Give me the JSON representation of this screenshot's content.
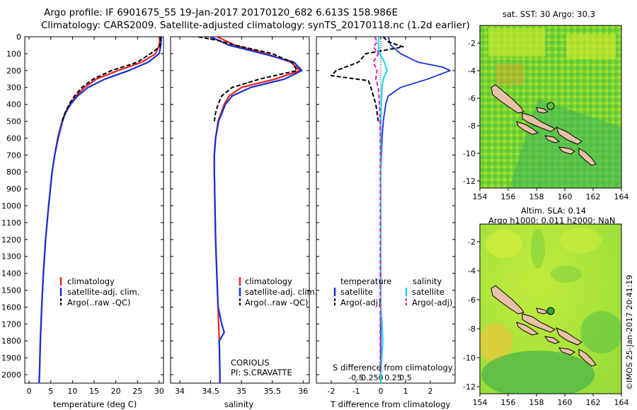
{
  "header": {
    "line1": "Argo profile: IF 6901675_55 19-Jan-2017 20170120_682 6.613S 158.986E",
    "line2": "Climatology: CARS2009. Satellite-adjusted climatology: synTS_20170118.nc (1.2d earlier)"
  },
  "sst_map": {
    "title": "sat. SST: 30 Argo: 30.3",
    "xticks": [
      "154",
      "156",
      "158",
      "160",
      "162",
      "164"
    ],
    "yticks": [
      "-2",
      "-4",
      "-6",
      "-8",
      "-10",
      "-12"
    ]
  },
  "sla_map": {
    "title1": "Altim. SLA: 0.14",
    "title2": "Argo h1000: 0.011 h2000: NaN",
    "xticks": [
      "154",
      "156",
      "158",
      "160",
      "162",
      "164"
    ],
    "yticks": [
      "-2",
      "-4",
      "-6",
      "-8",
      "-10",
      "-12"
    ]
  },
  "credit": "©IMOS 25-Jan-2017 20:41:19",
  "colors": {
    "clim": "#e8231b",
    "sat": "#1730d4",
    "argo": "#000000",
    "sat_s": "#22d8e8",
    "argo_s": "#e020c8"
  },
  "chart_data": [
    {
      "type": "line",
      "id": "temperature",
      "xlabel": "temperature (deg C)",
      "ylabel": "",
      "xlim": [
        -1,
        31
      ],
      "ylim": [
        2050,
        0
      ],
      "xticks": [
        0,
        5,
        10,
        15,
        20,
        25,
        30
      ],
      "yticks": [
        0,
        100,
        200,
        300,
        400,
        500,
        600,
        700,
        800,
        900,
        1000,
        1100,
        1200,
        1300,
        1400,
        1500,
        1600,
        1700,
        1800,
        1900,
        2000
      ],
      "legend": [
        "climatology",
        "satellite-adj. clim.",
        "Argo(..raw -QC)"
      ],
      "series": [
        {
          "name": "climatology",
          "depth": [
            0,
            50,
            100,
            150,
            200,
            250,
            300,
            350,
            400,
            450,
            500,
            600,
            700,
            800,
            1000,
            1200,
            1400,
            1600,
            1800,
            2000,
            2050
          ],
          "values": [
            30.2,
            30.0,
            29.2,
            26.0,
            20.5,
            15.5,
            12.8,
            10.8,
            9.4,
            8.3,
            7.6,
            6.6,
            5.9,
            5.3,
            4.5,
            3.8,
            3.3,
            2.9,
            2.6,
            2.4,
            2.3
          ]
        },
        {
          "name": "satellite-adj. clim.",
          "depth": [
            0,
            50,
            100,
            150,
            200,
            250,
            300,
            350,
            400,
            450,
            500,
            600,
            700,
            800,
            1000,
            1200,
            1400,
            1600,
            1800,
            2000,
            2050
          ],
          "values": [
            30.5,
            30.4,
            30.0,
            27.5,
            23.0,
            17.5,
            13.6,
            11.2,
            9.6,
            8.4,
            7.7,
            6.7,
            5.9,
            5.3,
            4.5,
            3.8,
            3.3,
            2.9,
            2.6,
            2.4,
            2.3
          ]
        },
        {
          "name": "Argo(..raw -QC)",
          "depth": [
            0,
            30,
            60,
            100,
            150,
            200,
            250,
            300,
            350,
            400,
            450,
            500
          ],
          "values": [
            30.3,
            30.3,
            30.1,
            28.0,
            25.0,
            19.0,
            14.8,
            12.2,
            10.5,
            9.2,
            8.3,
            7.6
          ]
        }
      ]
    },
    {
      "type": "line",
      "id": "salinity",
      "xlabel": "salinity",
      "ylabel": "",
      "xlim": [
        33.85,
        36.1
      ],
      "ylim": [
        2050,
        0
      ],
      "xticks": [
        34,
        34.5,
        35,
        35.5,
        36
      ],
      "yticks": [
        0,
        100,
        200,
        300,
        400,
        500,
        600,
        700,
        800,
        900,
        1000,
        1100,
        1200,
        1300,
        1400,
        1500,
        1600,
        1700,
        1800,
        1900,
        2000
      ],
      "legend": [
        "climatology",
        "satellite-adj. clim.",
        "Argo(..raw -QC)"
      ],
      "annotations": [
        "CORIOLIS",
        "PI: S.CRAVATTE"
      ],
      "series": [
        {
          "name": "climatology",
          "depth": [
            0,
            50,
            100,
            150,
            200,
            250,
            300,
            350,
            400,
            500,
            600,
            700,
            800,
            1000,
            1200,
            1400,
            1600,
            1700,
            1800,
            2000,
            2050
          ],
          "values": [
            34.6,
            34.9,
            35.4,
            35.8,
            35.95,
            35.55,
            35.0,
            34.8,
            34.72,
            34.62,
            34.58,
            34.56,
            34.56,
            34.57,
            34.58,
            34.6,
            34.62,
            34.63,
            34.64,
            34.65,
            34.65
          ]
        },
        {
          "name": "satellite-adj. clim.",
          "depth": [
            0,
            50,
            100,
            150,
            200,
            250,
            300,
            350,
            400,
            500,
            600,
            700,
            800,
            1000,
            1200,
            1400,
            1600,
            1700,
            1750,
            1800,
            2000,
            2050
          ],
          "values": [
            34.5,
            34.8,
            35.35,
            35.85,
            35.98,
            35.7,
            35.15,
            34.85,
            34.74,
            34.63,
            34.58,
            34.56,
            34.56,
            34.57,
            34.58,
            34.6,
            34.62,
            34.68,
            34.72,
            34.64,
            34.65,
            34.65
          ]
        },
        {
          "name": "Argo(..raw -QC)",
          "depth": [
            0,
            20,
            50,
            100,
            150,
            200,
            250,
            300,
            350,
            400,
            450,
            500
          ],
          "values": [
            34.3,
            34.6,
            34.9,
            35.5,
            35.82,
            35.9,
            35.3,
            34.85,
            34.68,
            34.62,
            34.58,
            34.56
          ]
        }
      ]
    },
    {
      "type": "line",
      "id": "difference",
      "xlabel": "T difference from climatology",
      "xlabel_top": "S difference from climatology",
      "ylabel": "",
      "xlim": [
        -2.6,
        3.0
      ],
      "ylim": [
        2050,
        0
      ],
      "xticks": [
        -2,
        -1,
        0,
        1,
        2
      ],
      "xticks_s": [
        "-0.5",
        "-0.25",
        "0",
        "0.25",
        "0.5"
      ],
      "yticks": [
        0,
        100,
        200,
        300,
        400,
        500,
        600,
        700,
        800,
        900,
        1000,
        1100,
        1200,
        1300,
        1400,
        1500,
        1600,
        1700,
        1800,
        1900,
        2000
      ],
      "legend_t_title": "temperature",
      "legend_s_title": "salinity",
      "legend": [
        "satellite",
        "Argo(-adj)",
        "satellite",
        "Argo(-adj)"
      ],
      "series": [
        {
          "name": "T satellite",
          "depth": [
            0,
            50,
            100,
            150,
            180,
            200,
            250,
            300,
            350,
            400,
            500,
            600,
            800,
            1000,
            1200,
            1400,
            1600,
            1800,
            2000,
            2050
          ],
          "values": [
            0.3,
            0.4,
            0.8,
            1.5,
            2.5,
            2.8,
            1.9,
            0.8,
            0.3,
            0.2,
            0.1,
            0.05,
            0.0,
            0.0,
            0.0,
            0.0,
            0.0,
            0.0,
            0.0,
            0.0
          ]
        },
        {
          "name": "T Argo(-adj)",
          "depth": [
            0,
            30,
            60,
            100,
            150,
            200,
            230,
            260,
            300,
            350,
            400,
            500
          ],
          "values": [
            0.1,
            0.3,
            0.9,
            -0.6,
            -0.9,
            -1.8,
            -2.0,
            -0.5,
            -0.4,
            -0.3,
            -0.2,
            -0.1
          ]
        },
        {
          "name": "S satellite",
          "depth": [
            0,
            50,
            100,
            150,
            200,
            250,
            300,
            400,
            500,
            800,
            1000,
            1200,
            1400,
            1600,
            1700,
            1800,
            2000,
            2050
          ],
          "values": [
            -0.08,
            -0.1,
            -0.05,
            0.15,
            0.25,
            0.1,
            0.05,
            0.02,
            0.0,
            0.0,
            0.0,
            0.0,
            -0.01,
            0.0,
            0.05,
            0.08,
            0.0,
            0.0
          ]
        },
        {
          "name": "S Argo(-adj)",
          "depth": [
            0,
            30,
            60,
            100,
            150,
            200,
            250,
            300,
            400,
            500,
            600,
            800,
            1000,
            1400,
            1800,
            2000
          ],
          "values": [
            -0.25,
            -0.15,
            -0.3,
            -0.1,
            -0.3,
            -0.15,
            -0.2,
            -0.1,
            -0.05,
            -0.03,
            -0.02,
            -0.02,
            -0.02,
            -0.02,
            -0.02,
            -0.02
          ]
        }
      ]
    }
  ]
}
